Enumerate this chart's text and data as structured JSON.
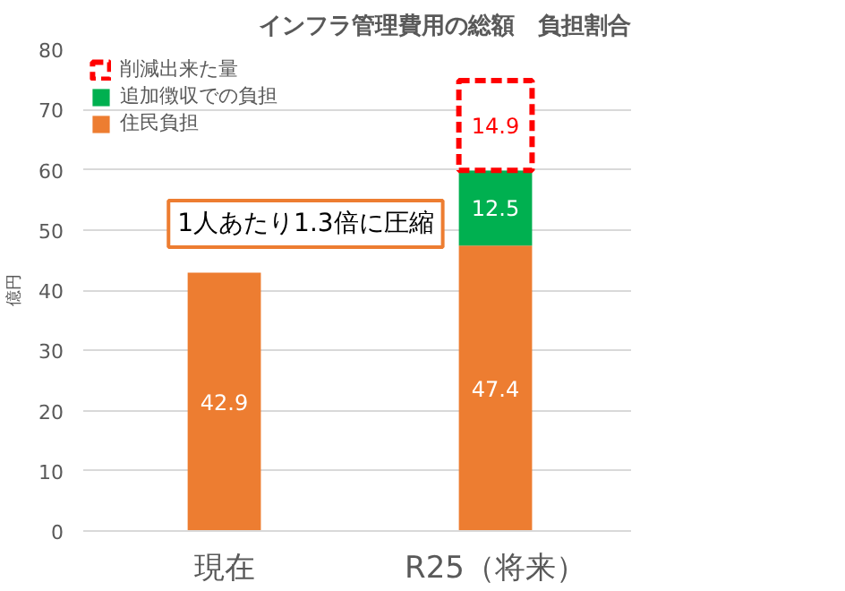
{
  "chart_data": {
    "type": "bar",
    "title": "インフラ管理費用の総額　負担割合",
    "ylabel": "億円",
    "categories": [
      "現在",
      "R25（将来）"
    ],
    "stacked": true,
    "series": [
      {
        "name": "住民負担",
        "color": "#ed7d31",
        "values": [
          42.9,
          47.4
        ]
      },
      {
        "name": "追加徴収での負担",
        "color": "#00b050",
        "values": [
          null,
          12.5
        ]
      },
      {
        "name": "削減出来た量",
        "color": "#ff0000",
        "values": [
          null,
          14.9
        ],
        "line_style": "dashed"
      }
    ],
    "ylim": [
      0,
      80
    ],
    "yticks": [
      0,
      10,
      20,
      30,
      40,
      50,
      60,
      70,
      80
    ],
    "grid": "y",
    "legend": "top left",
    "data_labels": true,
    "annotations": [
      "1人あたり1.3倍に圧縮"
    ]
  }
}
